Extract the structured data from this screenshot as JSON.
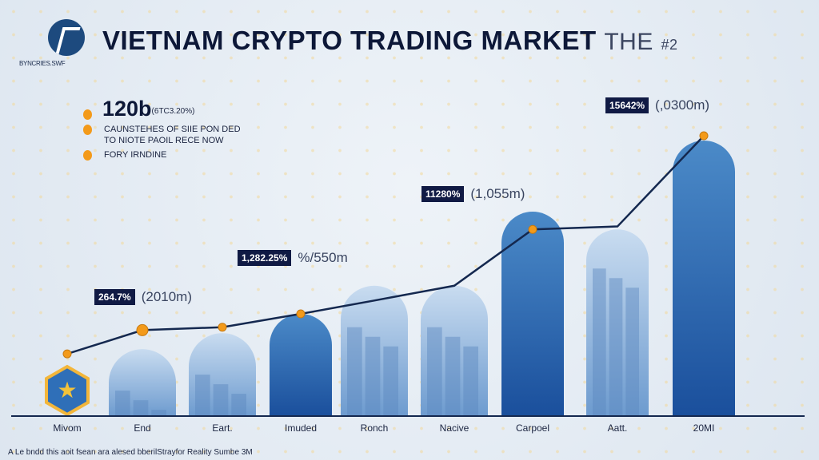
{
  "header": {
    "logo_text": "BYNCRIES.SWF",
    "title": "VIETNAM CRYPTO TRADING MARKET",
    "title_suffix": "THE",
    "title_num": "#2"
  },
  "legend": {
    "headline": "120b",
    "headline_note": "(6TC3.20%)",
    "lines": [
      "CAUNSTEHES OF SIIE PON DED",
      "TO NIOTE PAOIL RECE NOW",
      "FORY IRNDINE"
    ]
  },
  "callouts": [
    {
      "pct": "264.7%",
      "amount": "(2010m)"
    },
    {
      "pct": "1,282.25%",
      "amount": "%/550m"
    },
    {
      "pct": "11280%",
      "amount": "(1,055m)"
    },
    {
      "pct": "15642%",
      "amount": "(,0300m)"
    }
  ],
  "footer": "A Le bndd this aoit fsean ara alesed bberilStrayfor Reality Sumbe 3M",
  "colors": {
    "bar_dark": "#1f5aa6",
    "bar_light": "#a9c6e6",
    "line": "#14284f",
    "marker": "#f39a1a",
    "badge": "#101a44"
  },
  "chart_data": {
    "type": "bar",
    "title": "VIETNAM CRYPTO TRADING MARKET",
    "categories": [
      "Mivom",
      "End",
      "Eart.",
      "Imuded",
      "Ronch",
      "Nacive",
      "Carpoel",
      "Aatt.",
      "20MI"
    ],
    "values": [
      16,
      22.6,
      28,
      34.5,
      44,
      44,
      69,
      63,
      93
    ],
    "bar_styles": [
      "hexagon",
      "light",
      "light",
      "dark",
      "light",
      "light",
      "dark",
      "light",
      "dark"
    ],
    "line_series": {
      "name": "trend",
      "values": [
        21,
        29,
        30,
        34.5,
        39,
        44,
        63,
        64,
        94.6
      ]
    },
    "markers": [
      0,
      1,
      2,
      3,
      6,
      8
    ],
    "ylim": [
      0,
      100
    ],
    "grid": false,
    "xlabel": "",
    "ylabel": ""
  }
}
